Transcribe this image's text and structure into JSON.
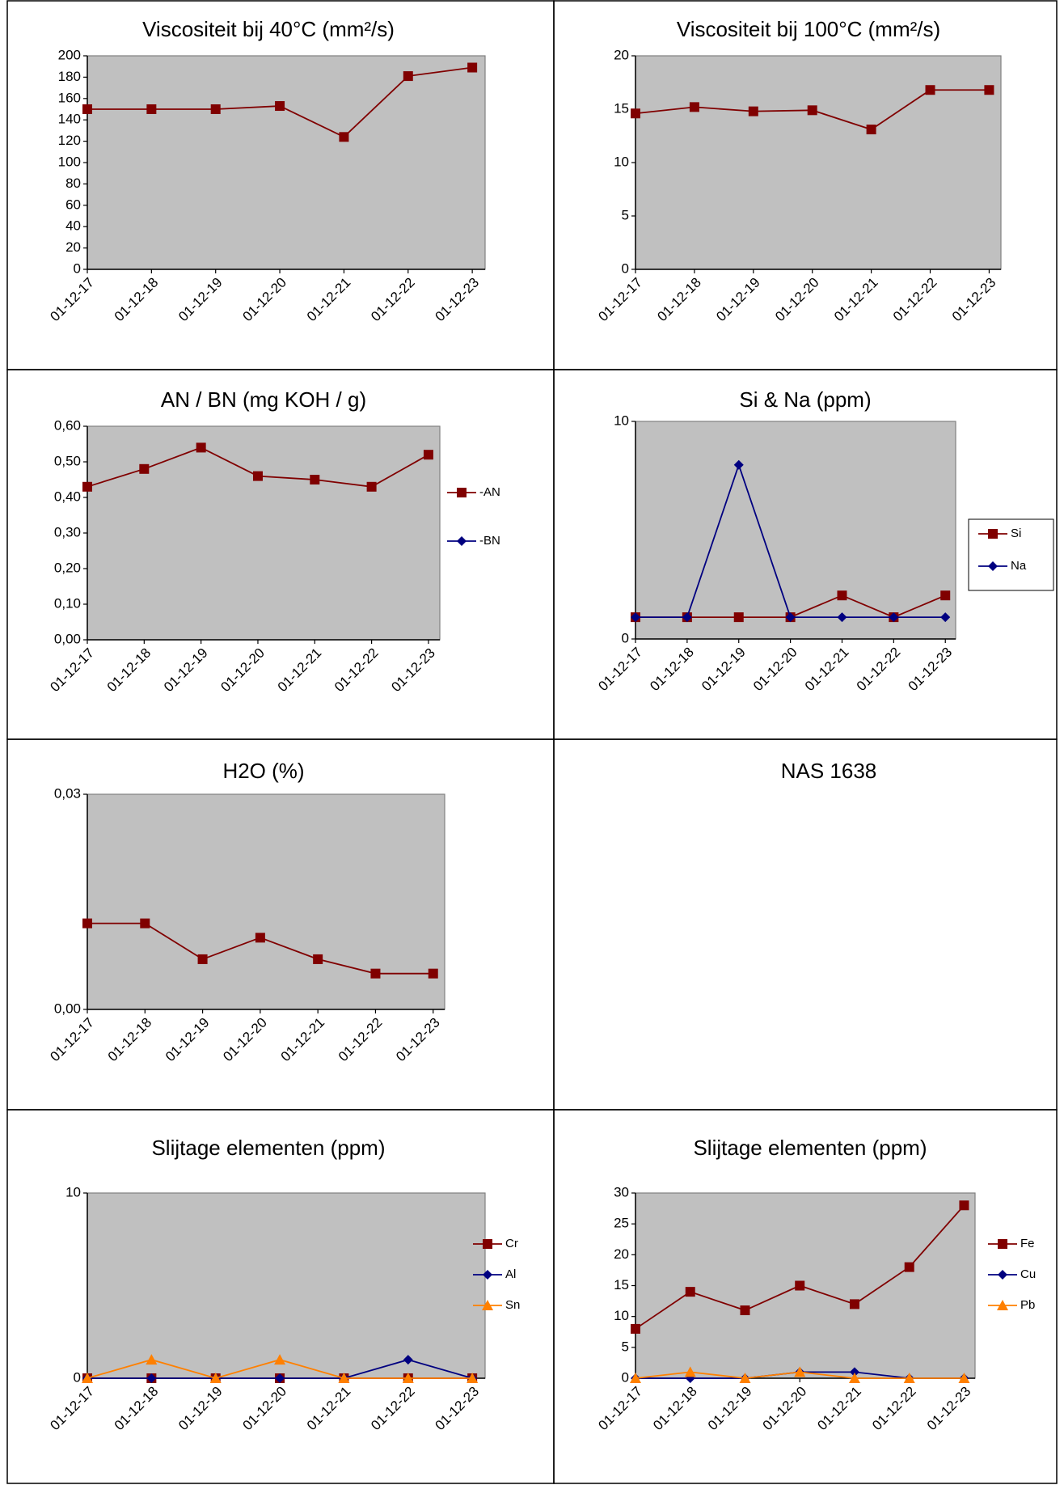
{
  "chart_data": [
    {
      "type": "line",
      "title": "Viscositeit bij 40°C (mm²/s)",
      "categories": [
        "01-12-17",
        "01-12-18",
        "01-12-19",
        "01-12-20",
        "01-12-21",
        "01-12-22",
        "01-12-23"
      ],
      "series": [
        {
          "name": null,
          "color": "#800000",
          "marker": "square",
          "values": [
            150,
            150,
            150,
            153,
            124,
            181,
            189
          ]
        }
      ],
      "ylim": [
        0,
        200
      ],
      "yticks": [
        0,
        20,
        40,
        60,
        80,
        100,
        120,
        140,
        160,
        180,
        200
      ]
    },
    {
      "type": "line",
      "title": "Viscositeit bij 100°C (mm²/s)",
      "categories": [
        "01-12-17",
        "01-12-18",
        "01-12-19",
        "01-12-20",
        "01-12-21",
        "01-12-22",
        "01-12-23"
      ],
      "series": [
        {
          "name": null,
          "color": "#800000",
          "marker": "square",
          "values": [
            14.6,
            15.2,
            14.8,
            14.9,
            13.1,
            16.8,
            16.8
          ]
        }
      ],
      "ylim": [
        0,
        20
      ],
      "yticks": [
        0,
        5,
        10,
        15,
        20
      ]
    },
    {
      "type": "line",
      "title": "AN / BN (mg KOH / g)",
      "categories": [
        "01-12-17",
        "01-12-18",
        "01-12-19",
        "01-12-20",
        "01-12-21",
        "01-12-22",
        "01-12-23"
      ],
      "series": [
        {
          "name": "-AN",
          "color": "#800000",
          "marker": "square",
          "values": [
            0.43,
            0.48,
            0.54,
            0.46,
            0.45,
            0.43,
            0.52
          ]
        },
        {
          "name": "-BN",
          "color": "#000080",
          "marker": "diamond",
          "values": [
            null,
            null,
            null,
            null,
            null,
            null,
            null
          ]
        }
      ],
      "ylim": [
        0,
        0.6
      ],
      "yticks": [
        {
          "value": 0,
          "label": "0,00"
        },
        {
          "value": 0.1,
          "label": "0,10"
        },
        {
          "value": 0.2,
          "label": "0,20"
        },
        {
          "value": 0.3,
          "label": "0,30"
        },
        {
          "value": 0.4,
          "label": "0,40"
        },
        {
          "value": 0.5,
          "label": "0,50"
        },
        {
          "value": 0.6,
          "label": "0,60"
        }
      ],
      "legend": "right"
    },
    {
      "type": "line",
      "title": "Si & Na (ppm)",
      "categories": [
        "01-12-17",
        "01-12-18",
        "01-12-19",
        "01-12-20",
        "01-12-21",
        "01-12-22",
        "01-12-23"
      ],
      "series": [
        {
          "name": "Si",
          "color": "#800000",
          "marker": "square",
          "values": [
            1,
            1,
            1,
            1,
            2,
            1,
            2
          ]
        },
        {
          "name": "Na",
          "color": "#000080",
          "marker": "diamond",
          "values": [
            1,
            1,
            8,
            1,
            1,
            1,
            1
          ]
        }
      ],
      "ylim": [
        0,
        10
      ],
      "yticks": [
        0,
        10
      ],
      "legend": "right",
      "legend_box": true
    },
    {
      "type": "line",
      "title": "H2O (%)",
      "categories": [
        "01-12-17",
        "01-12-18",
        "01-12-19",
        "01-12-20",
        "01-12-21",
        "01-12-22",
        "01-12-23"
      ],
      "series": [
        {
          "name": null,
          "color": "#800000",
          "marker": "square",
          "values": [
            0.012,
            0.012,
            0.007,
            0.01,
            0.007,
            0.005,
            0.005
          ]
        }
      ],
      "ylim": [
        0,
        0.03
      ],
      "yticks": [
        {
          "value": 0,
          "label": "0,00"
        },
        {
          "value": 0.03,
          "label": "0,03"
        }
      ]
    },
    {
      "type": "line",
      "title": "NAS 1638"
    },
    {
      "type": "line",
      "title": "Slijtage elementen (ppm)",
      "categories": [
        "01-12-17",
        "01-12-18",
        "01-12-19",
        "01-12-20",
        "01-12-21",
        "01-12-22",
        "01-12-23"
      ],
      "series": [
        {
          "name": "Cr",
          "color": "#800000",
          "marker": "square",
          "values": [
            0,
            0,
            0,
            0,
            0,
            0,
            0
          ]
        },
        {
          "name": "Al",
          "color": "#000080",
          "marker": "diamond",
          "values": [
            0,
            0,
            0,
            0,
            0,
            1,
            0
          ]
        },
        {
          "name": "Sn",
          "color": "#ff8000",
          "marker": "triangle",
          "values": [
            0,
            1,
            0,
            1,
            0,
            0,
            0
          ]
        }
      ],
      "ylim": [
        0,
        10
      ],
      "yticks": [
        0,
        10
      ],
      "legend": "right"
    },
    {
      "type": "line",
      "title": "Slijtage elementen (ppm)",
      "categories": [
        "01-12-17",
        "01-12-18",
        "01-12-19",
        "01-12-20",
        "01-12-21",
        "01-12-22",
        "01-12-23"
      ],
      "series": [
        {
          "name": "Fe",
          "color": "#800000",
          "marker": "square",
          "values": [
            8,
            14,
            11,
            15,
            12,
            18,
            28
          ]
        },
        {
          "name": "Cu",
          "color": "#000080",
          "marker": "diamond",
          "values": [
            0,
            0,
            0,
            1,
            1,
            0,
            0
          ]
        },
        {
          "name": "Pb",
          "color": "#ff8000",
          "marker": "triangle",
          "values": [
            0,
            1,
            0,
            1,
            0,
            0,
            0
          ]
        }
      ],
      "ylim": [
        0,
        30
      ],
      "yticks": [
        0,
        5,
        10,
        15,
        20,
        25,
        30
      ],
      "legend": "right"
    }
  ]
}
